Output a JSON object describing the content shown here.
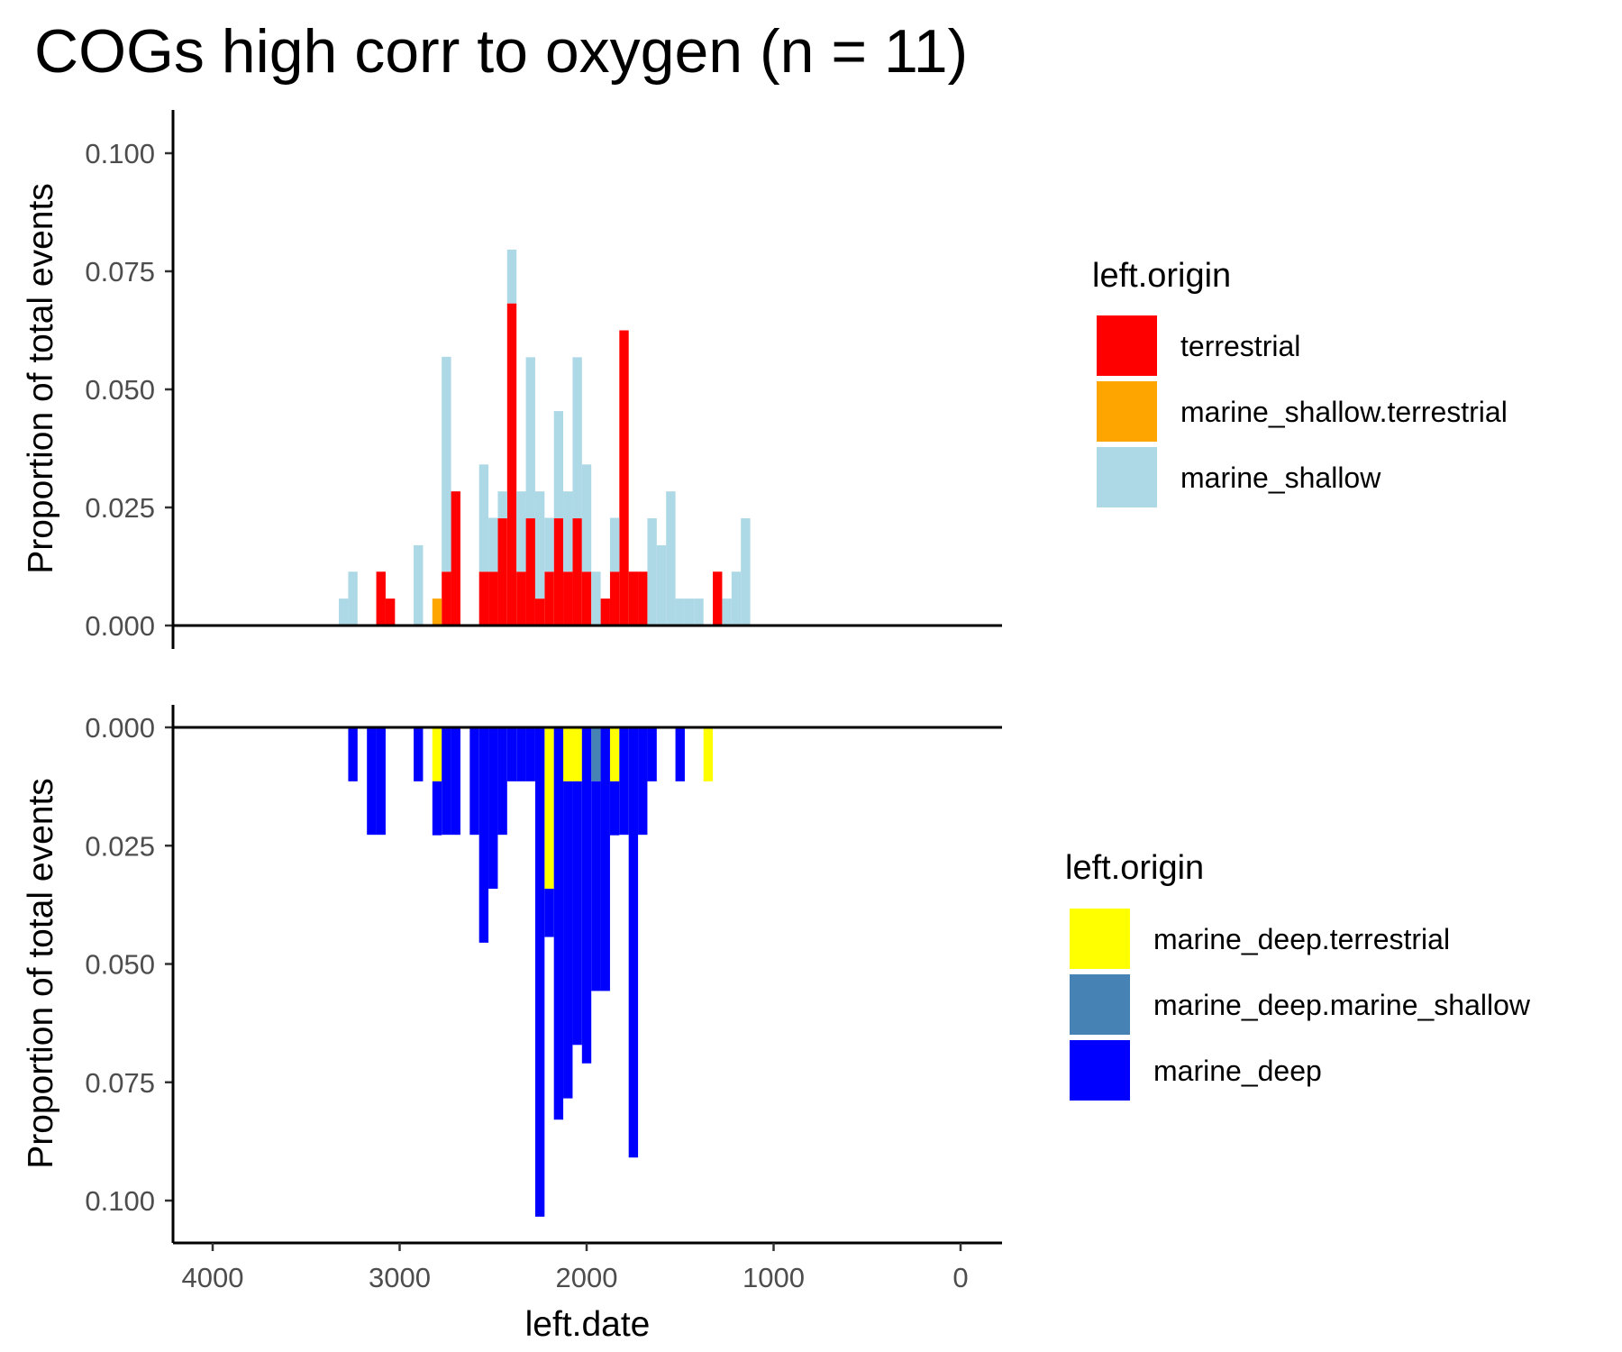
{
  "chart_data": {
    "type": "bar",
    "title": "COGs high corr to oxygen (n = 11)",
    "xlabel": "left.date",
    "xlim": [
      4200,
      -200
    ],
    "x_reversed": true,
    "x_ticks": [
      4000,
      3000,
      2000,
      1000,
      0
    ],
    "bin_width": 50,
    "panels": [
      {
        "name": "top",
        "ylabel": "Proportion of total events",
        "ylim": [
          0,
          0.1
        ],
        "y_ticks": [
          "0.100",
          "0.075",
          "0.050",
          "0.025",
          "0.000"
        ],
        "y_tick_values": [
          0.1,
          0.075,
          0.05,
          0.025,
          0.0
        ],
        "direction": "up",
        "legend_title": "left.origin",
        "series": [
          {
            "name": "terrestrial",
            "color": "#FF0000",
            "x": [
              3100,
              3050,
              2750,
              2700,
              2550,
              2500,
              2450,
              2400,
              2350,
              2300,
              2250,
              2200,
              2150,
              2100,
              2050,
              2000,
              1950,
              1900,
              1850,
              1800,
              1750,
              1700,
              1350,
              1300
            ],
            "values": [
              0.0114,
              0.0057,
              0.0114,
              0.0284,
              0.0114,
              0.0114,
              0.0227,
              0.0682,
              0.0114,
              0.0227,
              0.0057,
              0.0114,
              0.0227,
              0.0114,
              0.0227,
              0.0114,
              0.0,
              0.0057,
              0.0114,
              0.0625,
              0.0114,
              0.0114,
              0.0,
              0.0114
            ]
          },
          {
            "name": "marine_shallow.terrestrial",
            "color": "#FFA500",
            "x": [
              2800
            ],
            "values": [
              0.0057
            ]
          },
          {
            "name": "marine_shallow",
            "color": "#ADD8E6",
            "x": [
              3300,
              3250,
              2900,
              2750,
              2550,
              2500,
              2450,
              2400,
              2350,
              2300,
              2250,
              2200,
              2150,
              2100,
              2050,
              2000,
              1950,
              1900,
              1850,
              1800,
              1650,
              1600,
              1550,
              1500,
              1450,
              1400,
              1250,
              1200,
              1150
            ],
            "values": [
              0.0057,
              0.0114,
              0.017,
              0.0455,
              0.0227,
              0.0114,
              0.0057,
              0.0114,
              0.017,
              0.0341,
              0.0227,
              0.0114,
              0.0227,
              0.017,
              0.0341,
              0.0227,
              0.0114,
              0.0,
              0.0114,
              0.0,
              0.0227,
              0.017,
              0.0284,
              0.0057,
              0.0057,
              0.0057,
              0.0057,
              0.0114,
              0.0227
            ]
          }
        ]
      },
      {
        "name": "bottom",
        "ylabel": "Proportion of total events",
        "ylim": [
          0,
          0.105
        ],
        "y_ticks": [
          "0.000",
          "0.025",
          "0.050",
          "0.075",
          "0.100"
        ],
        "y_tick_values": [
          0.0,
          0.025,
          0.05,
          0.075,
          0.1
        ],
        "direction": "down",
        "legend_title": "left.origin",
        "series": [
          {
            "name": "marine_deep.terrestrial",
            "color": "#FFFF00",
            "x": [
              2800,
              2200,
              2100,
              2050,
              1850,
              1350
            ],
            "values": [
              0.0114,
              0.0341,
              0.0114,
              0.0114,
              0.0114,
              0.0114
            ]
          },
          {
            "name": "marine_deep.marine_shallow",
            "color": "#4682B4",
            "x": [
              1950
            ],
            "values": [
              0.0114
            ]
          },
          {
            "name": "marine_deep",
            "color": "#0000FF",
            "x": [
              3250,
              3150,
              3100,
              2900,
              2800,
              2750,
              2700,
              2600,
              2550,
              2500,
              2450,
              2400,
              2350,
              2300,
              2250,
              2200,
              2150,
              2100,
              2050,
              2000,
              1950,
              1900,
              1850,
              1800,
              1750,
              1700,
              1650,
              1500
            ],
            "values": [
              0.0114,
              0.0227,
              0.0227,
              0.0114,
              0.0114,
              0.0227,
              0.0227,
              0.0227,
              0.0455,
              0.0341,
              0.0227,
              0.0114,
              0.0114,
              0.0114,
              0.1034,
              0.0102,
              0.0829,
              0.067,
              0.0557,
              0.071,
              0.0443,
              0.0557,
              0.0114,
              0.0227,
              0.0909,
              0.0227,
              0.0114,
              0.0114
            ]
          }
        ]
      }
    ]
  }
}
